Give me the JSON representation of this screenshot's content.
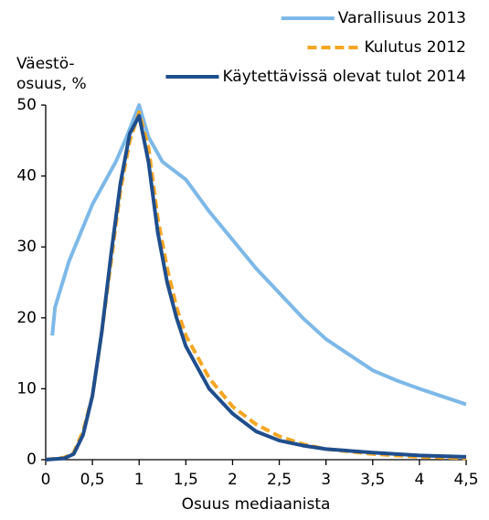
{
  "chart_data": {
    "type": "line",
    "x_label": "Osuus mediaanista",
    "y_label": [
      "Väestö-",
      "osuus, %"
    ],
    "xlim": [
      0,
      4.5
    ],
    "xticks": [
      0,
      {
        "value": 0.5,
        "label": "0,5"
      },
      1,
      {
        "value": 1.5,
        "label": "1,5"
      },
      2,
      {
        "value": 2.5,
        "label": "2,5"
      },
      3,
      {
        "value": 3.5,
        "label": "3,5"
      },
      4,
      {
        "value": 4.5,
        "label": "4,5"
      }
    ],
    "ylim": [
      0,
      50
    ],
    "yticks": [
      0,
      10,
      20,
      30,
      40,
      50
    ],
    "grid": false,
    "legend": "upper right",
    "series": [
      {
        "name": "Varallisuus 2013",
        "color": "#7db9e8",
        "dash": false,
        "x": [
          0.07,
          0.1,
          0.25,
          0.5,
          0.75,
          0.85,
          1.0,
          1.1,
          1.25,
          1.5,
          1.75,
          2.0,
          2.25,
          2.5,
          2.75,
          3.0,
          3.25,
          3.5,
          3.75,
          4.0,
          4.25,
          4.5
        ],
        "values": [
          17.5,
          21.5,
          28,
          36,
          42,
          45,
          50,
          45.5,
          42,
          39.5,
          35,
          31,
          27,
          23.5,
          20,
          17,
          14.8,
          12.6,
          11.2,
          10,
          8.9,
          7.8
        ]
      },
      {
        "name": "Kulutus 2012",
        "color": "#f5a623",
        "dash": true,
        "x": [
          0,
          0.2,
          0.3,
          0.4,
          0.5,
          0.6,
          0.7,
          0.8,
          0.9,
          1.0,
          1.1,
          1.2,
          1.3,
          1.4,
          1.5,
          1.75,
          2.0,
          2.25,
          2.5,
          2.75,
          3.0,
          3.5,
          4.0,
          4.5
        ],
        "values": [
          0,
          0.3,
          1,
          4,
          9,
          18,
          28,
          38,
          45,
          49,
          44,
          34,
          27,
          21.5,
          17.5,
          11.5,
          7.5,
          5,
          3.3,
          2.2,
          1.5,
          0.8,
          0.4,
          0.2
        ]
      },
      {
        "name": "Käytettävissä olevat tulot 2014",
        "color": "#1f4e8c",
        "dash": false,
        "x": [
          0,
          0.2,
          0.3,
          0.4,
          0.5,
          0.6,
          0.7,
          0.8,
          0.9,
          1.0,
          1.1,
          1.2,
          1.3,
          1.4,
          1.5,
          1.75,
          2.0,
          2.25,
          2.5,
          2.75,
          3.0,
          3.5,
          4.0,
          4.5
        ],
        "values": [
          0,
          0.2,
          0.8,
          3.5,
          9,
          18,
          29,
          39,
          46,
          48.5,
          42,
          32,
          25,
          20,
          16,
          10,
          6.5,
          4,
          2.7,
          2,
          1.5,
          1,
          0.6,
          0.4
        ]
      }
    ]
  }
}
